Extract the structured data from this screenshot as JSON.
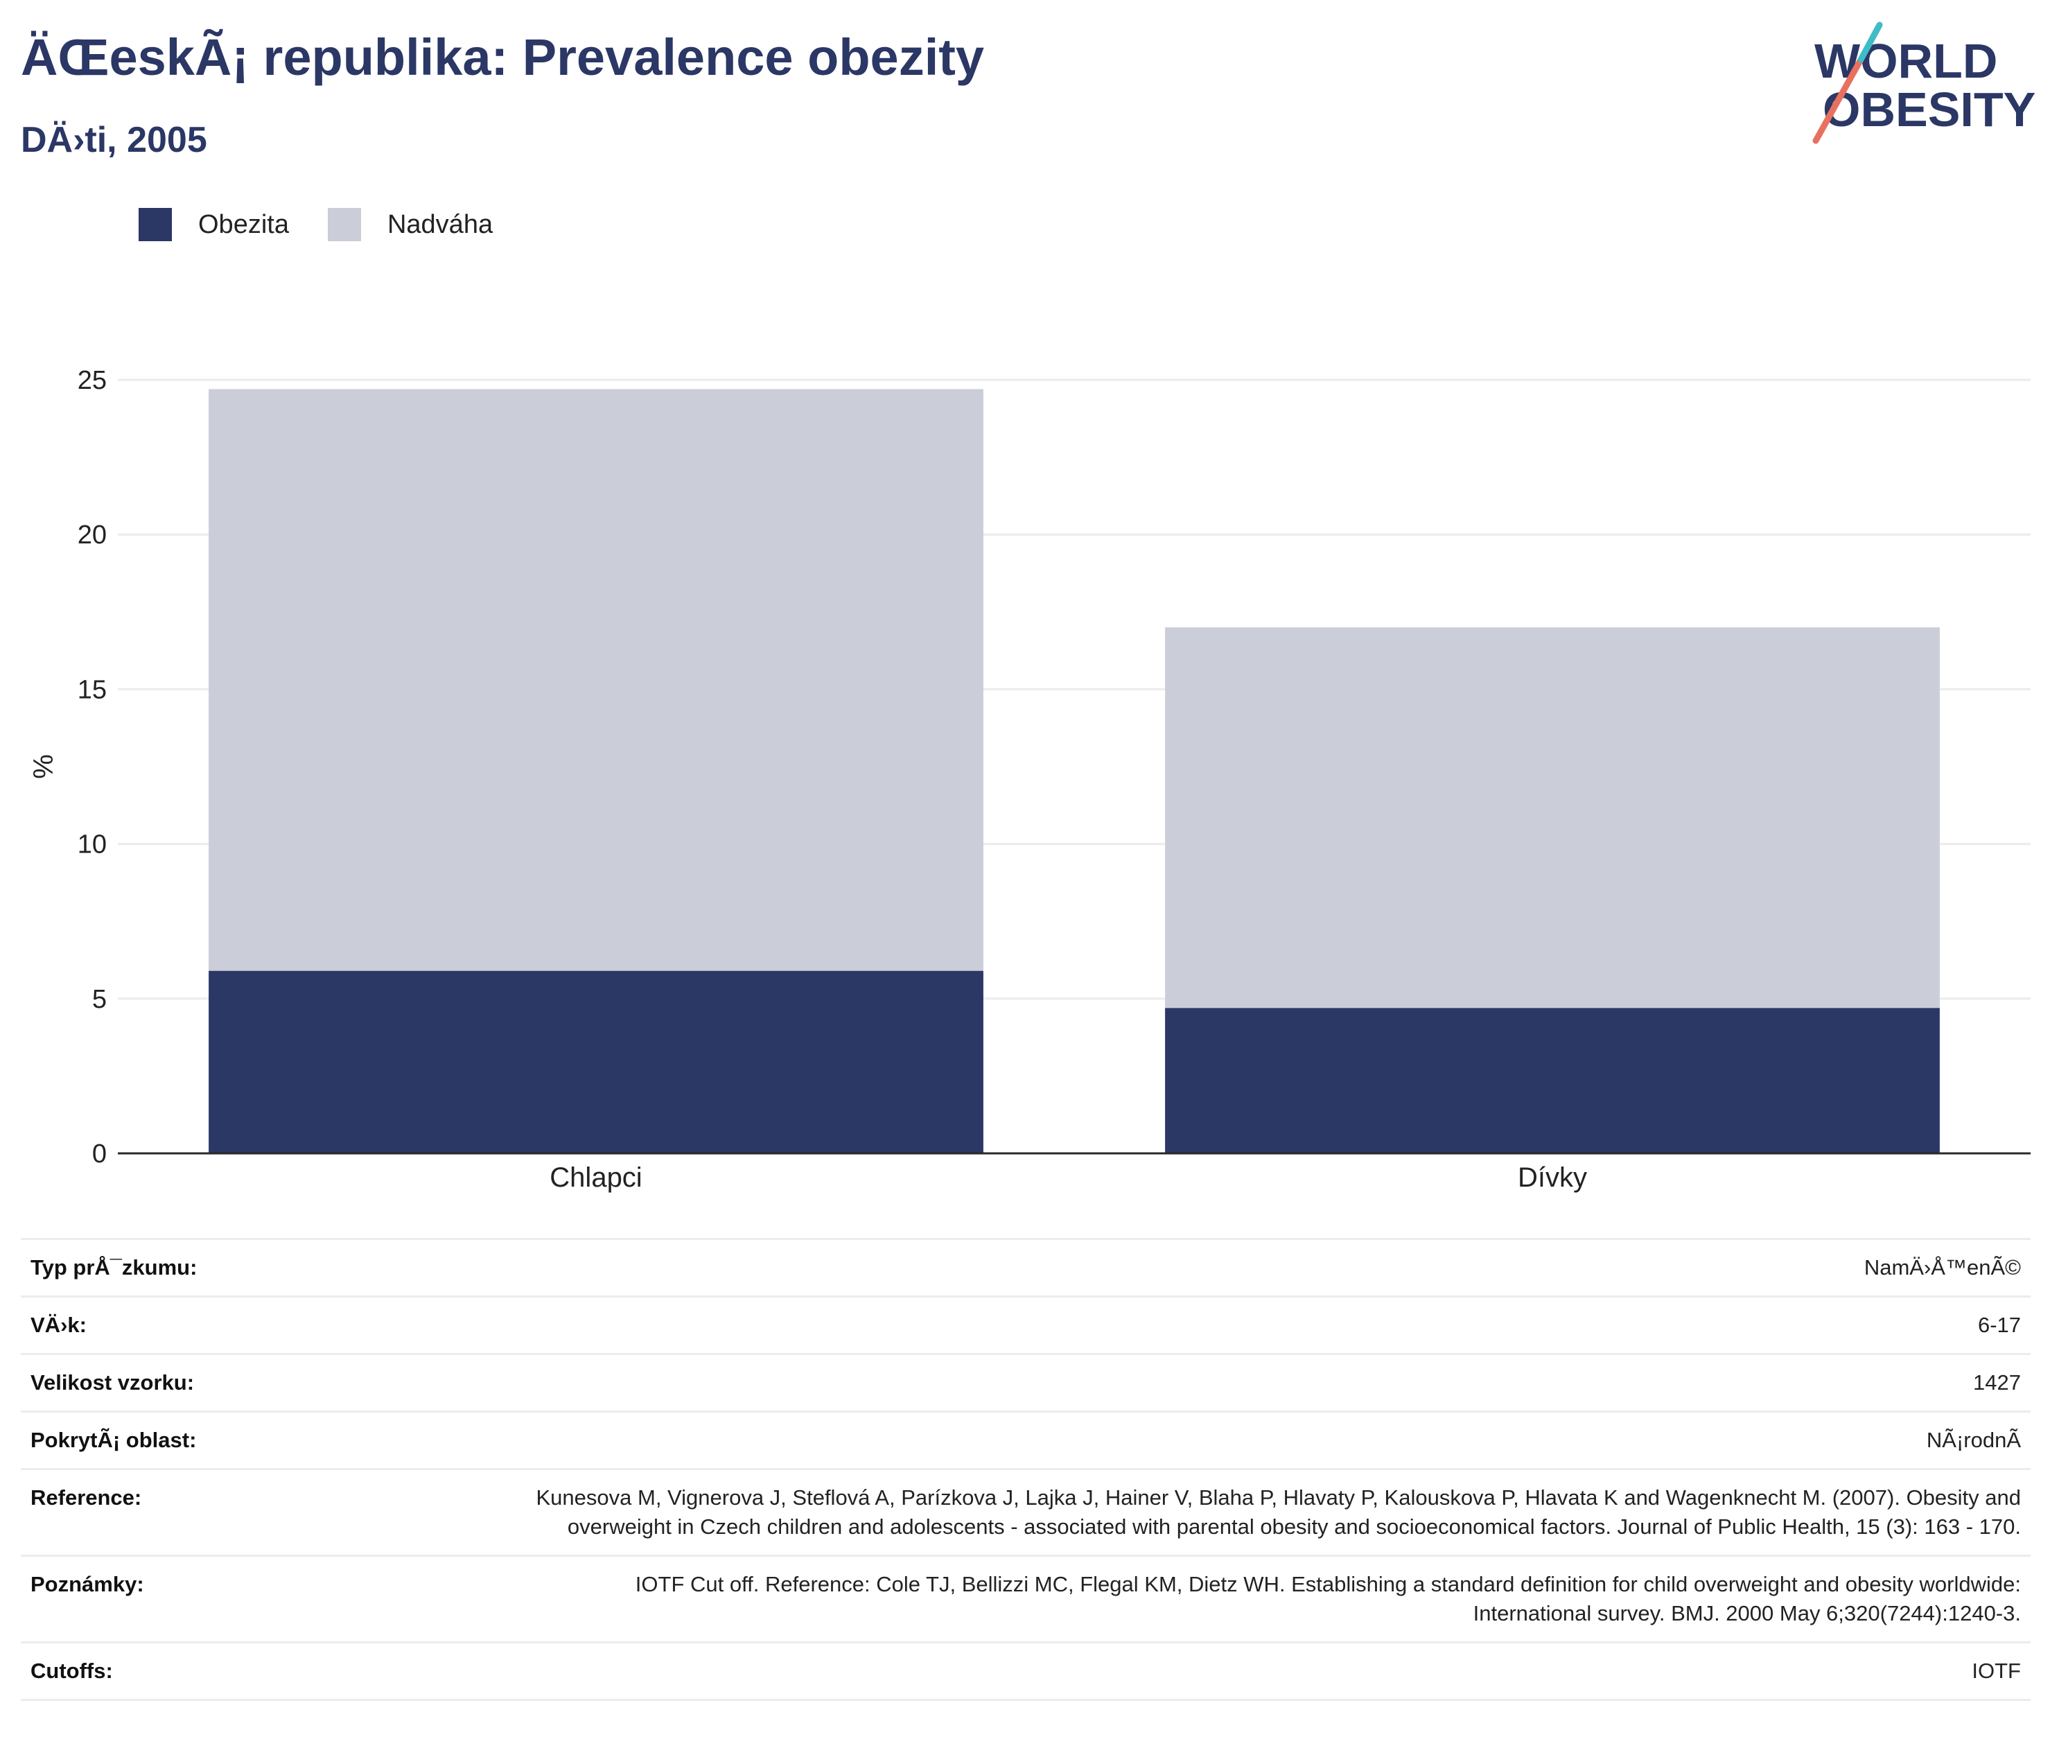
{
  "header": {
    "title": "ÄŒeskÃ¡ republika: Prevalence obezity",
    "subtitle": "DÄ›ti, 2005"
  },
  "logo": {
    "line1": "WORLD",
    "line2": "OBESITY",
    "slash_colors": [
      "#e8705f",
      "#3fbcc8"
    ],
    "text_color": "#2b3765"
  },
  "colors": {
    "obesity": "#2b3765",
    "overweight": "#cbcdd9",
    "grid": "#ececec",
    "axis": "#2a2a2a"
  },
  "chart_data": {
    "type": "bar",
    "stacked": true,
    "categories": [
      "Chlapci",
      "Dívky"
    ],
    "series": [
      {
        "name": "Obezita",
        "values": [
          5.9,
          4.7
        ],
        "color": "#2b3765"
      },
      {
        "name": "Nadváha",
        "values": [
          18.8,
          12.3
        ],
        "color": "#cbcdd9"
      }
    ],
    "xlabel": "",
    "ylabel": "%",
    "ylim": [
      0,
      25
    ],
    "yticks": [
      0,
      5,
      10,
      15,
      20,
      25
    ],
    "grid": true,
    "legend_position": "top-left"
  },
  "meta": [
    {
      "label": "Typ prÅ¯zkumu:",
      "value": "NamÄ›Å™enÃ©"
    },
    {
      "label": "VÄ›k:",
      "value": "6-17"
    },
    {
      "label": "Velikost vzorku:",
      "value": "1427"
    },
    {
      "label": "PokrytÃ¡ oblast:",
      "value": "NÃ¡rodnÃ"
    },
    {
      "label": "Reference:",
      "value": "Kunesova M, Vignerova J, Steflová A, Parízkova J, Lajka J, Hainer V, Blaha P, Hlavaty P, Kalouskova P, Hlavata K and Wagenknecht M. (2007). Obesity and overweight in Czech children and adolescents - associated with parental obesity and socioeconomical factors. Journal of Public Health, 15 (3): 163 - 170."
    },
    {
      "label": "Poznámky:",
      "value": "IOTF Cut off. Reference: Cole TJ, Bellizzi MC, Flegal KM, Dietz WH. Establishing a standard definition for child overweight and obesity worldwide: International survey. BMJ. 2000 May 6;320(7244):1240-3."
    },
    {
      "label": "Cutoffs:",
      "value": "IOTF"
    }
  ]
}
